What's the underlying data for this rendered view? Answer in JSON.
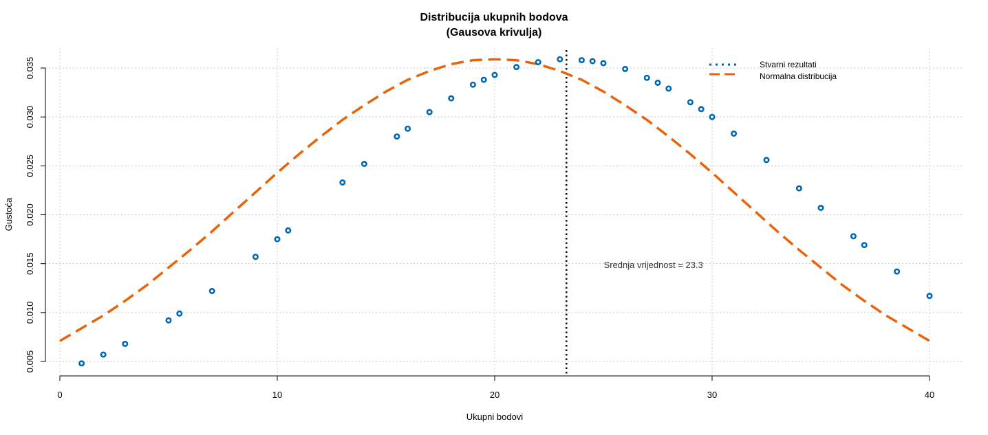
{
  "chart_data": {
    "type": "scatter",
    "title_line1": "Distribucija ukupnih bodova",
    "title_line2": "(Gausova krivulja)",
    "xlabel": "Ukupni bodovi",
    "ylabel": "Gustoća",
    "xlim": [
      0,
      40
    ],
    "ylim": [
      0.005,
      0.035
    ],
    "x_ticks": [
      "0",
      "10",
      "20",
      "30",
      "40"
    ],
    "y_ticks": [
      "0.005",
      "0.010",
      "0.015",
      "0.020",
      "0.025",
      "0.030",
      "0.035"
    ],
    "grid": true,
    "legend_position": "top-right",
    "series": [
      {
        "name": "Stvarni rezultati",
        "style": "points",
        "color": "#0066b3",
        "x": [
          1,
          2,
          3,
          5,
          5.5,
          7,
          9,
          10,
          10.5,
          13,
          14,
          15.5,
          16,
          17,
          18,
          19,
          19.5,
          20,
          21,
          22,
          23,
          24,
          24.5,
          25,
          26,
          27,
          27.5,
          28,
          29,
          29.5,
          30,
          31,
          32.5,
          34,
          35,
          36.5,
          37,
          38.5,
          40
        ],
        "y": [
          0.0048,
          0.0057,
          0.0068,
          0.0092,
          0.0099,
          0.0122,
          0.0157,
          0.0175,
          0.0184,
          0.0233,
          0.0252,
          0.028,
          0.0288,
          0.0305,
          0.0319,
          0.0333,
          0.0338,
          0.0343,
          0.0351,
          0.0356,
          0.0359,
          0.0358,
          0.0357,
          0.0355,
          0.0349,
          0.034,
          0.0335,
          0.0329,
          0.0315,
          0.0308,
          0.03,
          0.0283,
          0.0256,
          0.0227,
          0.0207,
          0.0178,
          0.0169,
          0.0142,
          0.0117
        ]
      },
      {
        "name": "Normalna distribucija",
        "style": "dashed-line",
        "color": "#e8640c",
        "x": [
          0,
          1,
          2,
          3,
          4,
          5,
          6,
          7,
          8,
          9,
          10,
          11,
          12,
          13,
          14,
          15,
          16,
          17,
          18,
          19,
          20,
          21,
          22,
          23,
          24,
          25,
          26,
          27,
          28,
          29,
          30,
          31,
          32,
          33,
          34,
          35,
          36,
          37,
          38,
          39,
          40
        ],
        "y": [
          0.0071,
          0.0084,
          0.0097,
          0.0112,
          0.0128,
          0.0146,
          0.0164,
          0.0183,
          0.0203,
          0.0223,
          0.0243,
          0.0262,
          0.028,
          0.0297,
          0.0312,
          0.0326,
          0.0338,
          0.0347,
          0.0354,
          0.0358,
          0.0359,
          0.0358,
          0.0354,
          0.0347,
          0.0338,
          0.0326,
          0.0312,
          0.0297,
          0.028,
          0.0262,
          0.0243,
          0.0223,
          0.0203,
          0.0183,
          0.0164,
          0.0146,
          0.0128,
          0.0112,
          0.0097,
          0.0084,
          0.0071
        ]
      }
    ],
    "vline": {
      "x": 23.3,
      "color": "#111111",
      "style": "dotted"
    },
    "annotation": {
      "text": "Srednja vrijednost = 23.3",
      "x": 27.3,
      "y": 0.0149
    }
  }
}
